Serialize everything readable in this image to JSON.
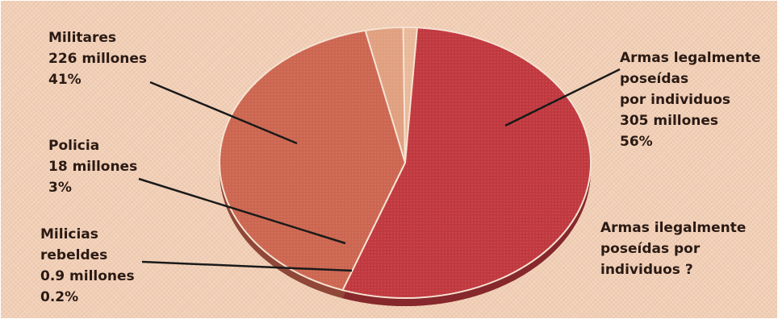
{
  "chart_data": {
    "type": "pie",
    "title": "",
    "slices": [
      {
        "label": "Armas legalmente poseídas por individuos",
        "value_text": "305 millones",
        "percent_text": "56%",
        "value": 305,
        "color": "#c0393f"
      },
      {
        "label": "Militares",
        "value_text": "226 millones",
        "percent_text": "41%",
        "value": 226,
        "color": "#cc6650"
      },
      {
        "label": "Policia",
        "value_text": "18 millones",
        "percent_text": "3%",
        "value": 18,
        "color": "#e0a080"
      },
      {
        "label": "Milicias rebeldes",
        "value_text": "0.9 millones",
        "percent_text": "0.2%",
        "value": 0.9,
        "color": "#e8b898"
      }
    ],
    "annotations": {
      "unknown": "Armas ilegalmente poseídas por individuos ?"
    }
  },
  "labels": {
    "militares": [
      "Militares",
      "226 millones",
      "41%"
    ],
    "armas_legal": [
      "Armas legalmente",
      "poseídas",
      "por individuos",
      "305 millones",
      "56%"
    ],
    "policia": [
      "Policia",
      "18 millones",
      "3%"
    ],
    "milicias": [
      "Milicias",
      "rebeldes",
      "0.9 millones",
      "0.2%"
    ],
    "armas_ilegal": [
      "Armas ilegalmente",
      "poseídas por",
      "individuos ?"
    ]
  },
  "colors": {
    "background": "#f1cfb6",
    "leader_lines": "#1a1a1a"
  }
}
